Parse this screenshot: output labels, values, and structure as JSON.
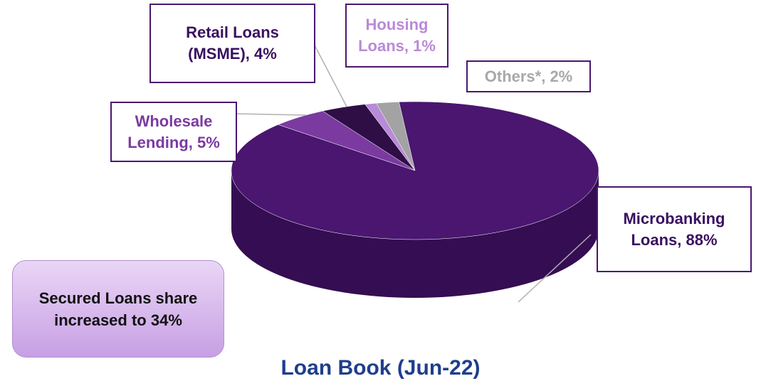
{
  "chart_data": {
    "type": "pie",
    "title": "Loan Book (Jun-22)",
    "values": [
      5,
      4,
      1,
      2,
      88
    ],
    "value_labels": [
      "Wholesale Lending, 5%",
      "Retail Loans (MSME), 4%",
      "Housing Loans, 1%",
      "Others*, 2%",
      "Microbanking Loans, 88%"
    ],
    "colors": [
      "#7b3aa0",
      "#2e0e45",
      "#b98ad8",
      "#a3a3a3",
      "#4a1670"
    ],
    "annotation": "Secured Loans share increased to 34%"
  }
}
